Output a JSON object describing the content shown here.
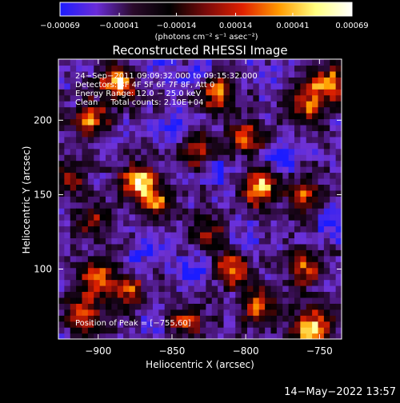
{
  "chart_data": {
    "type": "heatmap",
    "title": "Reconstructed RHESSI Image",
    "xlabel": "Heliocentric X (arcsec)",
    "ylabel": "Heliocentric Y (arcsec)",
    "xlim": [
      -927,
      -735
    ],
    "ylim": [
      53,
      241
    ],
    "x_ticks": [
      {
        "value": -900,
        "label": "−900"
      },
      {
        "value": -850,
        "label": "−850"
      },
      {
        "value": -800,
        "label": "−800"
      },
      {
        "value": -750,
        "label": "−750"
      }
    ],
    "y_ticks": [
      {
        "value": 100,
        "label": "100"
      },
      {
        "value": 150,
        "label": "150"
      },
      {
        "value": 200,
        "label": "200"
      }
    ],
    "colorbar": {
      "min": -0.00069,
      "max": 0.00069,
      "colors": [
        "#1c1cff",
        "#6a2cd8",
        "#2a0a2a",
        "#000000",
        "#7a0a0a",
        "#e02000",
        "#ff9a00",
        "#ffff80",
        "#ffffff"
      ],
      "ticks": [
        {
          "value": -0.00069,
          "label": "−0.00069"
        },
        {
          "value": -0.00041,
          "label": "−0.00041"
        },
        {
          "value": -0.00014,
          "label": "−0.00014"
        },
        {
          "value": 0.00014,
          "label": "0.00014"
        },
        {
          "value": 0.00041,
          "label": "0.00041"
        },
        {
          "value": 0.00069,
          "label": "0.00069"
        }
      ],
      "unit_label": "(photons cm⁻² s⁻¹ asec⁻²)"
    },
    "annotations": [
      "24−Sep−2011 09:09:32.000 to 09:15:32.000",
      "Detectors: 3F 4F 5F 6F 7F 8F, Att 0",
      "Energy Range: 12.0 − 25.0 keV",
      "Clean     Total counts: 2.10E+04"
    ],
    "peak_annotation": "Position of Peak = [−755,60]",
    "peak": {
      "x": -755,
      "y": 60
    },
    "hotspots": [
      {
        "x": -887,
        "y": 225,
        "v": 0.9
      },
      {
        "x": -905,
        "y": 200,
        "v": 0.7
      },
      {
        "x": -872,
        "y": 158,
        "v": 0.85
      },
      {
        "x": -860,
        "y": 145,
        "v": 0.6
      },
      {
        "x": -820,
        "y": 220,
        "v": 0.8
      },
      {
        "x": -800,
        "y": 190,
        "v": 0.7
      },
      {
        "x": -835,
        "y": 180,
        "v": 0.5
      },
      {
        "x": -790,
        "y": 155,
        "v": 0.85
      },
      {
        "x": -745,
        "y": 225,
        "v": 0.8
      },
      {
        "x": -760,
        "y": 210,
        "v": 0.6
      },
      {
        "x": -760,
        "y": 150,
        "v": 0.55
      },
      {
        "x": -900,
        "y": 95,
        "v": 0.8
      },
      {
        "x": -912,
        "y": 70,
        "v": 0.7
      },
      {
        "x": -880,
        "y": 85,
        "v": 0.6
      },
      {
        "x": -840,
        "y": 65,
        "v": 0.55
      },
      {
        "x": -810,
        "y": 100,
        "v": 0.6
      },
      {
        "x": -790,
        "y": 75,
        "v": 0.7
      },
      {
        "x": -760,
        "y": 100,
        "v": 0.65
      },
      {
        "x": -755,
        "y": 60,
        "v": 1.0
      },
      {
        "x": -825,
        "y": 125,
        "v": 0.45
      },
      {
        "x": -920,
        "y": 160,
        "v": 0.5
      },
      {
        "x": -905,
        "y": 130,
        "v": 0.45
      }
    ],
    "coldspots": [
      {
        "x": -830,
        "y": 230,
        "v": 0.9
      },
      {
        "x": -855,
        "y": 235,
        "v": 0.7
      },
      {
        "x": -850,
        "y": 195,
        "v": 0.6
      },
      {
        "x": -815,
        "y": 165,
        "v": 0.55
      },
      {
        "x": -775,
        "y": 175,
        "v": 0.9
      },
      {
        "x": -860,
        "y": 112,
        "v": 0.7
      },
      {
        "x": -835,
        "y": 100,
        "v": 0.9
      },
      {
        "x": -875,
        "y": 110,
        "v": 0.5
      },
      {
        "x": -905,
        "y": 115,
        "v": 0.45
      },
      {
        "x": -865,
        "y": 68,
        "v": 0.7
      },
      {
        "x": -800,
        "y": 120,
        "v": 0.5
      },
      {
        "x": -790,
        "y": 230,
        "v": 0.5
      },
      {
        "x": -740,
        "y": 130,
        "v": 0.55
      }
    ]
  },
  "footer": {
    "date": "14−May−2022 13:57"
  }
}
